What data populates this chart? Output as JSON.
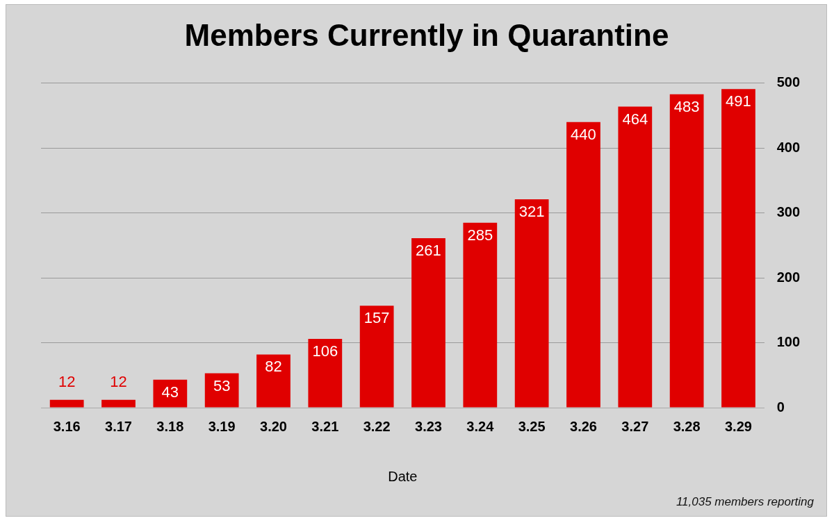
{
  "chart_data": {
    "type": "bar",
    "title": "Members Currently in Quarantine",
    "xlabel": "Date",
    "categories": [
      "3.16",
      "3.17",
      "3.18",
      "3.19",
      "3.20",
      "3.21",
      "3.22",
      "3.23",
      "3.24",
      "3.25",
      "3.26",
      "3.27",
      "3.28",
      "3.29"
    ],
    "values": [
      12,
      12,
      43,
      53,
      82,
      106,
      157,
      261,
      285,
      321,
      440,
      464,
      483,
      491
    ],
    "color": "#e00000",
    "ylim": [
      0,
      500
    ],
    "yticks": [
      0,
      100,
      200,
      300,
      400,
      500
    ],
    "grid": "y",
    "legend": false,
    "data_labels": true,
    "annotations": [
      "11,035 members reporting"
    ]
  }
}
